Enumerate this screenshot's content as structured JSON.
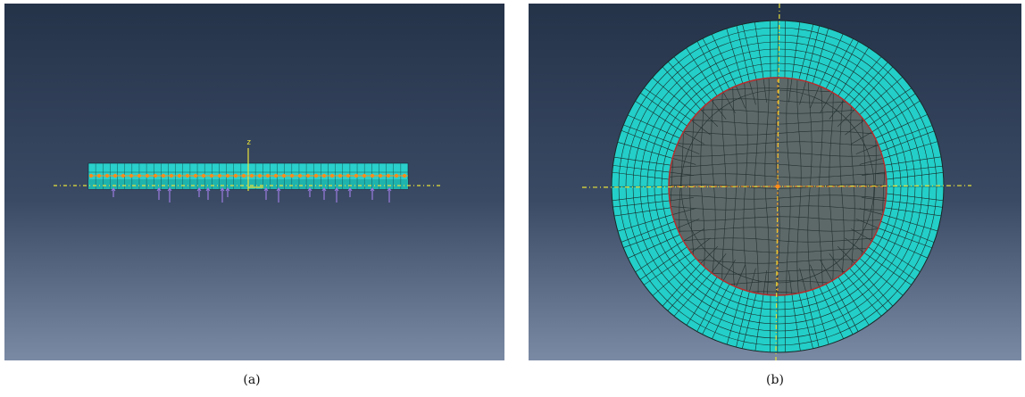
{
  "panels": [
    {
      "id": "a",
      "caption": "(a)",
      "view": "side",
      "axis_labels": [
        "z"
      ],
      "colors": {
        "background_top": "#253349",
        "background_bottom": "#7a8aa4",
        "part": "#2ad0cb",
        "nodes": "#ff8c1a",
        "loads": "#9a7be0",
        "axis": "#e8e23a"
      }
    },
    {
      "id": "b",
      "caption": "(b)",
      "view": "top",
      "colors": {
        "background_top": "#253349",
        "background_bottom": "#7a8aa4",
        "outer_ring": "#23cfc8",
        "inner_disk": "#5d6868",
        "inner_boundary": "#b82a2a",
        "mesh_lines": "#1a2a2a",
        "axis": "#e8e23a"
      }
    }
  ]
}
